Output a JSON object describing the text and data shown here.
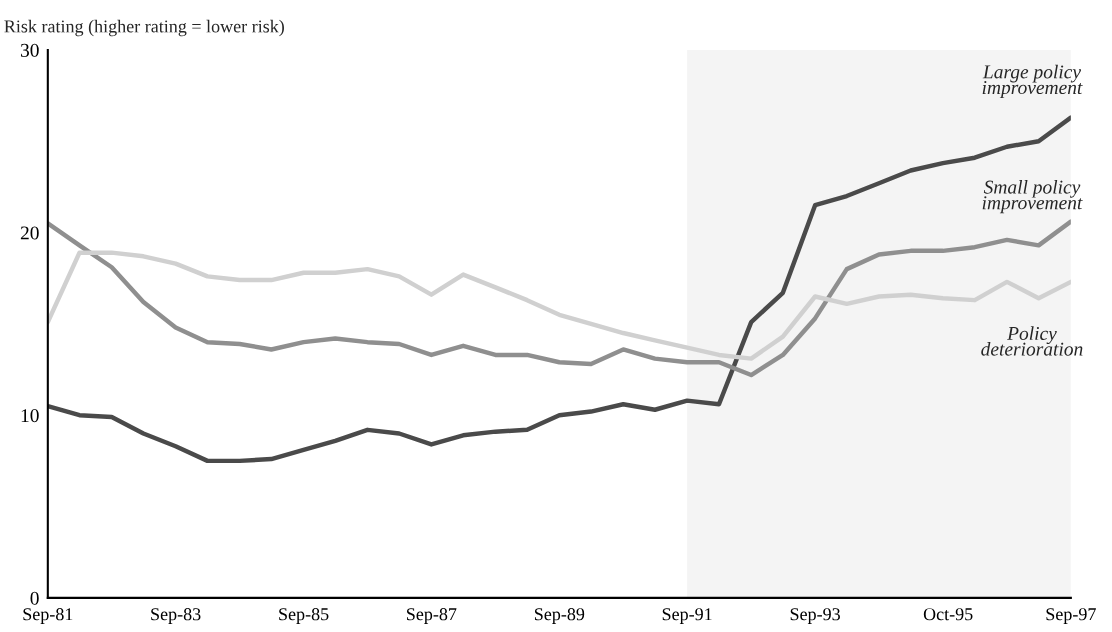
{
  "chart_data": {
    "type": "line",
    "ylabel": "Risk rating (higher rating = lower risk)",
    "x": [
      "1981-09",
      "1982-03",
      "1982-09",
      "1983-03",
      "1983-09",
      "1984-03",
      "1984-09",
      "1985-03",
      "1985-09",
      "1986-03",
      "1986-09",
      "1987-03",
      "1987-09",
      "1988-03",
      "1988-09",
      "1989-03",
      "1989-09",
      "1990-03",
      "1990-09",
      "1991-03",
      "1991-09",
      "1992-03",
      "1992-09",
      "1993-03",
      "1993-09",
      "1994-03",
      "1994-09",
      "1995-03",
      "1995-09",
      "1996-03",
      "1996-09",
      "1997-03",
      "1997-09"
    ],
    "series": [
      {
        "name": "Large policy improvement",
        "color": "#4a4a4a",
        "values": [
          10.5,
          10.0,
          9.9,
          9.0,
          8.3,
          7.5,
          7.5,
          7.6,
          8.1,
          8.6,
          9.2,
          9.0,
          8.4,
          8.9,
          9.1,
          9.2,
          10.0,
          10.2,
          10.6,
          10.3,
          10.8,
          10.6,
          15.1,
          16.7,
          21.5,
          22.0,
          22.7,
          23.4,
          23.8,
          24.1,
          24.7,
          25.0,
          26.3
        ]
      },
      {
        "name": "Small policy improvement",
        "color": "#8f8f8f",
        "values": [
          20.5,
          19.3,
          18.1,
          16.2,
          14.8,
          14.0,
          13.9,
          13.6,
          14.0,
          14.2,
          14.0,
          13.9,
          13.3,
          13.8,
          13.3,
          13.3,
          12.9,
          12.8,
          13.6,
          13.1,
          12.9,
          12.9,
          12.2,
          13.3,
          15.3,
          18.0,
          18.8,
          19.0,
          19.0,
          19.2,
          19.6,
          19.3,
          20.6
        ]
      },
      {
        "name": "Policy deterioration",
        "color": "#d0d0d0",
        "values": [
          15.1,
          18.9,
          18.9,
          18.7,
          18.3,
          17.6,
          17.4,
          17.4,
          17.8,
          17.8,
          18.0,
          17.6,
          16.6,
          17.7,
          17.0,
          16.3,
          15.5,
          15.0,
          14.5,
          14.1,
          13.7,
          13.3,
          13.1,
          14.3,
          16.5,
          16.1,
          16.5,
          16.6,
          16.4,
          16.3,
          17.3,
          16.4,
          17.3
        ]
      }
    ],
    "xlim": [
      "1981-09",
      "1997-09"
    ],
    "xticks": [
      {
        "value": "1981-09",
        "label": "Sep-81"
      },
      {
        "value": "1983-09",
        "label": "Sep-83"
      },
      {
        "value": "1985-09",
        "label": "Sep-85"
      },
      {
        "value": "1987-09",
        "label": "Sep-87"
      },
      {
        "value": "1989-09",
        "label": "Sep-89"
      },
      {
        "value": "1991-09",
        "label": "Sep-91"
      },
      {
        "value": "1993-09",
        "label": "Sep-93"
      },
      {
        "value": "1995-10",
        "label": "Oct-95"
      },
      {
        "value": "1997-09",
        "label": "Sep-97"
      }
    ],
    "ylim": [
      0,
      30
    ],
    "yticks": [
      0,
      10,
      20,
      30
    ],
    "bands": [
      {
        "axis": "x",
        "from": "1991-09",
        "to": "1997-09",
        "color": "#f4f4f4"
      }
    ],
    "grid": false,
    "legend": false,
    "marker": "none",
    "line_style": "solid"
  }
}
